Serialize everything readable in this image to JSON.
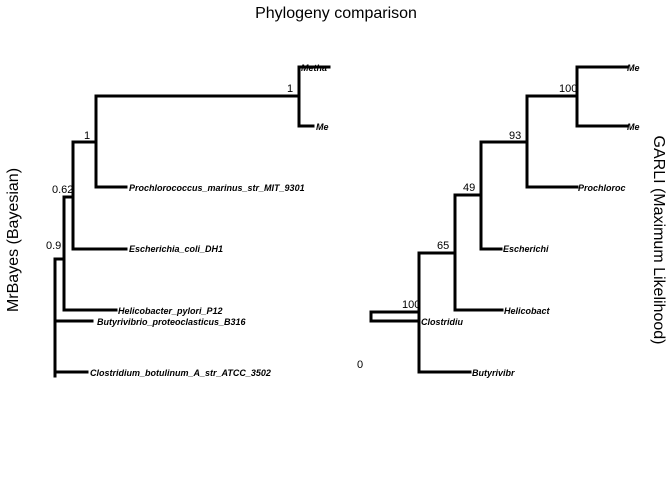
{
  "title": "Phylogeny comparison",
  "left_tree": {
    "method_label": "MrBayes (Bayesian)",
    "tips": [
      "Metha",
      "Me",
      "Prochlorococcus_marinus_str_MIT_9301",
      "Escherichia_coli_DH1",
      "Helicobacter_pylori_P12",
      "Butyrivibrio_proteoclasticus_B316",
      "Clostridium_botulinum_A_str_ATCC_3502"
    ],
    "supports": [
      "1",
      "1",
      "0.62",
      "0.9"
    ]
  },
  "right_tree": {
    "method_label": "GARLI (Maximum Likelihood)",
    "tips": [
      "Me",
      "Me",
      "Prochloroc",
      "Escherichi",
      "Helicobact",
      "Butyrivibr",
      "Clostridiu"
    ],
    "supports": [
      "100",
      "93",
      "49",
      "65",
      "100",
      "0"
    ]
  }
}
